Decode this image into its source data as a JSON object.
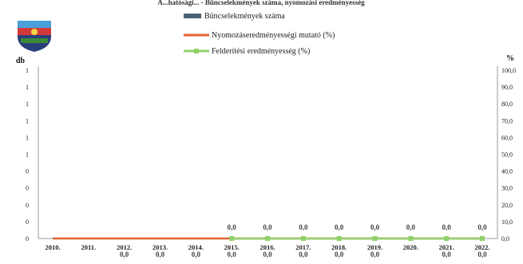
{
  "header": {
    "title": "Á...hatósági... - Bűncselekmények száma, nyomozási eredményesség"
  },
  "colors": {
    "bars": "#4a6178",
    "investigation": "#e3622f",
    "detection": "#8fd16b"
  },
  "chart_data": {
    "type": "line",
    "categories": [
      "2010.",
      "2011.",
      "2012.",
      "2013.",
      "2014.",
      "2015.",
      "2016.",
      "2017.",
      "2018.",
      "2019.",
      "2020.",
      "2021.",
      "2022."
    ],
    "ylabel_left": "db",
    "ylabel_right": "%",
    "left_ticks": [
      "0",
      "0",
      "0",
      "0",
      "0",
      "1",
      "1",
      "1",
      "1",
      "1",
      "1"
    ],
    "right_ticks": [
      "0,0",
      "10,0",
      "20,0",
      "30,0",
      "40,0",
      "50,0",
      "60,0",
      "70,0",
      "80,0",
      "90,0",
      "100,0"
    ],
    "ylim_left": [
      0,
      1
    ],
    "ylim_right": [
      0,
      100
    ],
    "series": [
      {
        "name": "Bűncselekmények száma",
        "kind": "bar",
        "values": [
          0,
          0,
          0,
          0,
          0,
          0,
          0,
          0,
          0,
          0,
          0,
          0,
          0
        ]
      },
      {
        "name": "Nyomozáseredményességi mutató (%)",
        "kind": "line",
        "values": [
          0,
          0,
          0,
          0,
          0,
          0,
          0,
          0,
          0,
          0,
          0,
          0,
          0
        ]
      },
      {
        "name": "Felderítési eredményesség (%)",
        "kind": "line-marker",
        "values": [
          null,
          null,
          null,
          null,
          null,
          0,
          0,
          0,
          0,
          0,
          0,
          0,
          0
        ]
      }
    ],
    "data_labels_top": [
      {
        "category": "2015.",
        "text": "0,0"
      },
      {
        "category": "2016.",
        "text": "0,0"
      },
      {
        "category": "2017.",
        "text": "0,0"
      },
      {
        "category": "2018.",
        "text": "0,0"
      },
      {
        "category": "2019.",
        "text": "0,0"
      },
      {
        "category": "2020.",
        "text": "0,0"
      },
      {
        "category": "2021.",
        "text": "0,0"
      },
      {
        "category": "2022.",
        "text": "0,0"
      }
    ],
    "data_labels_bottom": [
      {
        "category": "2012.",
        "text": "0,0"
      },
      {
        "category": "2013.",
        "text": "0,0"
      },
      {
        "category": "2014.",
        "text": "0,0"
      },
      {
        "category": "2015.",
        "text": "0,0"
      },
      {
        "category": "2016.",
        "text": "0,0"
      },
      {
        "category": "2017.",
        "text": "0,0"
      },
      {
        "category": "2018.",
        "text": "0,0"
      },
      {
        "category": "2019.",
        "text": "0,0"
      },
      {
        "category": "2021.",
        "text": "0,0"
      },
      {
        "category": "2022.",
        "text": "0,0"
      }
    ],
    "grid": false,
    "legend": "top-center"
  }
}
